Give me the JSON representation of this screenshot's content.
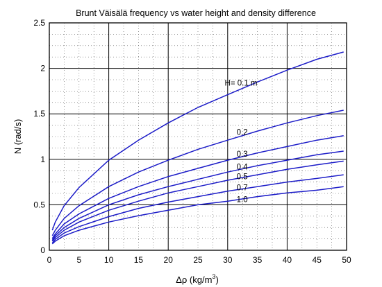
{
  "chart_data": {
    "type": "line",
    "title": "Brunt Väisälä frequency vs water height and density difference",
    "xlabel": {
      "prefix": "Δρ (kg/m",
      "sup": "3",
      "suffix": ")"
    },
    "ylabel": "N (rad/s)",
    "xlim": [
      0,
      50
    ],
    "ylim": [
      0,
      2.5
    ],
    "xticks": [
      "0",
      "5",
      "10",
      "15",
      "20",
      "25",
      "30",
      "35",
      "40",
      "45",
      "50"
    ],
    "yticks": [
      "0",
      "0.5",
      "1",
      "1.5",
      "2",
      "2.5"
    ],
    "grid": true,
    "curve_labels": [
      "H= 0.1 m",
      "0.2",
      "0.3",
      "0.4",
      "0.5",
      "0.7",
      "1.0"
    ],
    "series": [
      {
        "H": 0.1,
        "x": [
          0.5,
          1,
          2.5,
          5,
          10,
          15,
          20,
          25,
          30,
          35,
          40,
          45,
          49.5
        ],
        "y": [
          0.22,
          0.31,
          0.49,
          0.69,
          0.99,
          1.21,
          1.4,
          1.57,
          1.71,
          1.85,
          1.98,
          2.1,
          2.18
        ]
      },
      {
        "H": 0.2,
        "x": [
          0.5,
          1,
          2.5,
          5,
          10,
          15,
          20,
          25,
          30,
          35,
          40,
          45,
          49.5
        ],
        "y": [
          0.16,
          0.22,
          0.35,
          0.49,
          0.7,
          0.86,
          0.99,
          1.11,
          1.21,
          1.31,
          1.4,
          1.48,
          1.54
        ]
      },
      {
        "H": 0.3,
        "x": [
          0.5,
          1,
          2.5,
          5,
          10,
          15,
          20,
          25,
          30,
          35,
          40,
          45,
          49.5
        ],
        "y": [
          0.13,
          0.18,
          0.29,
          0.4,
          0.57,
          0.7,
          0.81,
          0.9,
          0.99,
          1.07,
          1.14,
          1.21,
          1.26
        ]
      },
      {
        "H": 0.4,
        "x": [
          0.5,
          1,
          2.5,
          5,
          10,
          15,
          20,
          25,
          30,
          35,
          40,
          45,
          49.5
        ],
        "y": [
          0.11,
          0.16,
          0.25,
          0.35,
          0.5,
          0.61,
          0.7,
          0.78,
          0.86,
          0.93,
          0.99,
          1.05,
          1.09
        ]
      },
      {
        "H": 0.5,
        "x": [
          0.5,
          1,
          2.5,
          5,
          10,
          15,
          20,
          25,
          30,
          35,
          40,
          45,
          49.5
        ],
        "y": [
          0.1,
          0.14,
          0.22,
          0.31,
          0.44,
          0.54,
          0.63,
          0.7,
          0.77,
          0.83,
          0.89,
          0.94,
          0.98
        ]
      },
      {
        "H": 0.7,
        "x": [
          0.5,
          1,
          2.5,
          5,
          10,
          15,
          20,
          25,
          30,
          35,
          40,
          45,
          49.5
        ],
        "y": [
          0.08,
          0.12,
          0.19,
          0.26,
          0.37,
          0.46,
          0.53,
          0.59,
          0.65,
          0.7,
          0.75,
          0.79,
          0.83
        ]
      },
      {
        "H": 1.0,
        "x": [
          0.5,
          1,
          2.5,
          5,
          10,
          15,
          20,
          25,
          30,
          35,
          40,
          45,
          49.5
        ],
        "y": [
          0.07,
          0.1,
          0.16,
          0.22,
          0.31,
          0.38,
          0.44,
          0.5,
          0.54,
          0.59,
          0.63,
          0.66,
          0.7
        ]
      }
    ],
    "line_color": "#1c1cc8",
    "grid_color": "#555555"
  }
}
